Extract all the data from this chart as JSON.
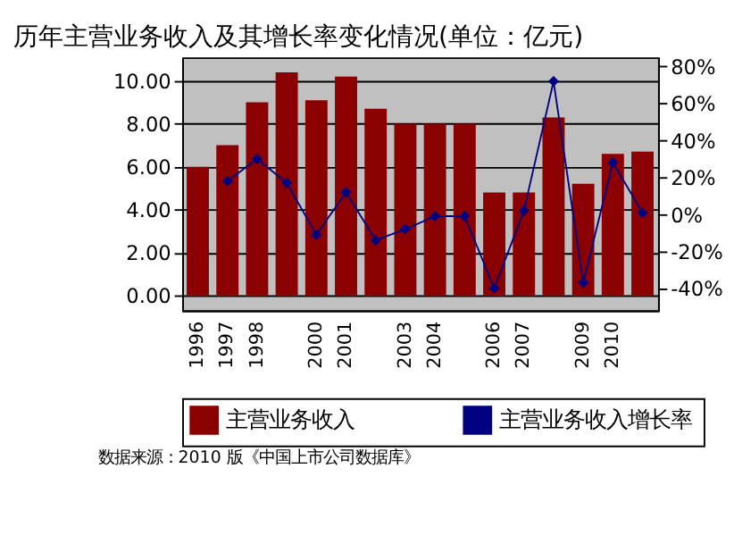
{
  "chart_data": {
    "type": "bar",
    "title": "历年主营业务收入及其增长率变化情况(单位：亿元)",
    "categories": [
      "1996",
      "1997",
      "1998",
      null,
      "2000",
      "2001",
      null,
      "2003",
      "2004",
      null,
      "2006",
      "2007",
      null,
      "2009",
      "2010",
      null
    ],
    "series": [
      {
        "name": "主营业务收入",
        "color": "#8b0000",
        "values": [
          6.0,
          7.0,
          9.0,
          10.4,
          9.1,
          10.2,
          8.7,
          8.0,
          8.0,
          8.0,
          4.8,
          4.8,
          8.3,
          5.2,
          6.6,
          6.7
        ]
      },
      {
        "name": "主营业务收入增长率",
        "type": "line",
        "axis": "y2",
        "color": "#000080",
        "marker": "diamond",
        "values": [
          null,
          18,
          30,
          17,
          -11,
          12,
          -14,
          -8,
          -1,
          -1,
          -40,
          2,
          72,
          -37,
          28,
          1
        ]
      }
    ],
    "ylim": [
      -0.7,
      11.1
    ],
    "yticks": [
      {
        "value": 0,
        "label": "0.00"
      },
      {
        "value": 2,
        "label": "2.00"
      },
      {
        "value": 4,
        "label": "4.00"
      },
      {
        "value": 6,
        "label": "6.00"
      },
      {
        "value": 8,
        "label": "8.00"
      },
      {
        "value": 10,
        "label": "10.00"
      }
    ],
    "y2lim": [
      -52,
      85
    ],
    "y2ticks": [
      {
        "value": -40,
        "label": "-40%"
      },
      {
        "value": -20,
        "label": "-20%"
      },
      {
        "value": 0,
        "label": "0%"
      },
      {
        "value": 20,
        "label": "20%"
      },
      {
        "value": 40,
        "label": "40%"
      },
      {
        "value": 60,
        "label": "60%"
      },
      {
        "value": 80,
        "label": "80%"
      }
    ],
    "grid": "y",
    "legend": "bottom",
    "annotations": [
      "数据来源：2010 版《中国上市公司数据库》"
    ]
  }
}
